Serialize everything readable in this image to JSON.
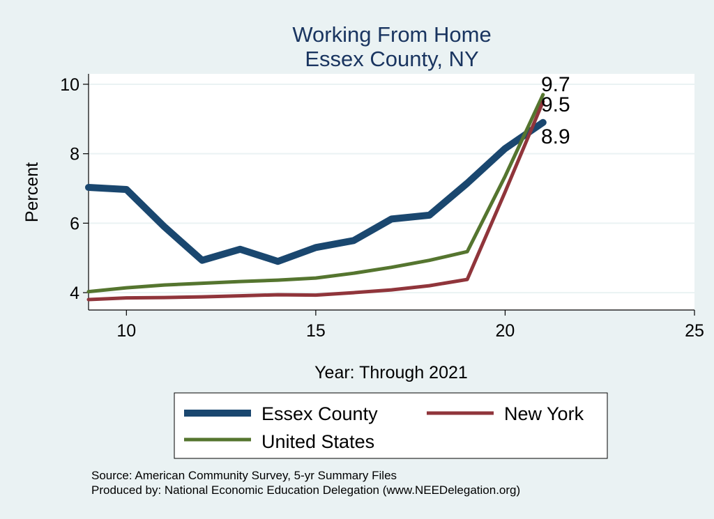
{
  "chart_data": {
    "type": "line",
    "title": "Working From Home",
    "subtitle": "Essex County, NY",
    "xlabel": "Year: Through 2021",
    "ylabel": "Percent",
    "xlim": [
      9,
      25
    ],
    "ylim": [
      3.5,
      10.3
    ],
    "xticks": [
      10,
      15,
      20,
      25
    ],
    "yticks": [
      4,
      6,
      8,
      10
    ],
    "grid": true,
    "legend_position": "bottom",
    "series": [
      {
        "name": "Essex County",
        "color": "#1A476F",
        "x": [
          9,
          10,
          11,
          12,
          13,
          14,
          15,
          16,
          17,
          18,
          19,
          20,
          21
        ],
        "values": [
          7.03,
          6.97,
          5.9,
          4.93,
          5.25,
          4.9,
          5.3,
          5.5,
          6.12,
          6.23,
          7.15,
          8.15,
          8.9
        ],
        "end_label": "8.9"
      },
      {
        "name": "New York",
        "color": "#90353B",
        "x": [
          9,
          10,
          11,
          12,
          13,
          14,
          15,
          16,
          17,
          18,
          19,
          20,
          21
        ],
        "values": [
          3.8,
          3.85,
          3.86,
          3.88,
          3.91,
          3.94,
          3.93,
          4.0,
          4.08,
          4.2,
          4.38,
          6.9,
          9.5
        ],
        "end_label": "9.5"
      },
      {
        "name": "United States",
        "color": "#55752F",
        "x": [
          9,
          10,
          11,
          12,
          13,
          14,
          15,
          16,
          17,
          18,
          19,
          20,
          21
        ],
        "values": [
          4.03,
          4.14,
          4.22,
          4.27,
          4.32,
          4.36,
          4.42,
          4.56,
          4.73,
          4.93,
          5.18,
          7.35,
          9.7
        ],
        "end_label": "9.7"
      }
    ],
    "notes": [
      "Source: American Community Survey, 5-yr Summary Files",
      "Produced by: National Economic Education Delegation (www.NEEDelegation.org)"
    ]
  }
}
